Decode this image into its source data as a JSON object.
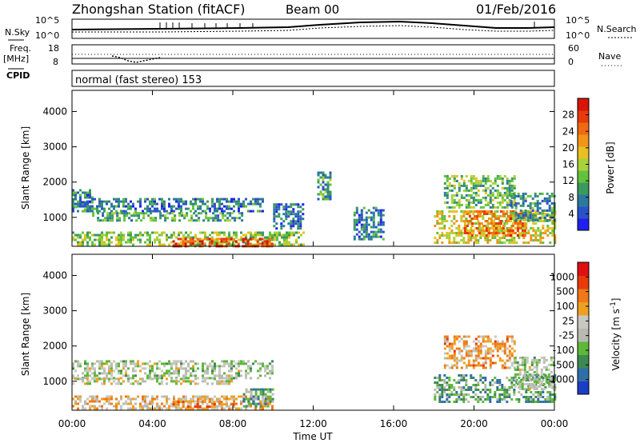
{
  "header": {
    "title": "Zhongshan Station (fitACF)",
    "beam": "Beam 00",
    "date": "01/Feb/2016"
  },
  "strips": {
    "nsky_label": "N.Sky",
    "nsearch_label": "N.Search",
    "nsky_top": "10^5",
    "nsky_bottom": "10^0",
    "nsearch_top": "10^5",
    "nsearch_bottom": "10^0",
    "freq_label": "Freq.",
    "freq_unit": "[MHz]",
    "freq_top": "18",
    "freq_bottom": "8",
    "nave_label": "Nave",
    "nave_top": "60",
    "nave_bottom": "0",
    "cpid_label": "CPID",
    "cpid_text": "normal (fast stereo) 153"
  },
  "chart_data": [
    {
      "type": "heatmap",
      "panel": "power",
      "ylabel": "Slant Range [km]",
      "xlabel": "",
      "ylim": [
        180,
        4600
      ],
      "xlim": [
        0,
        24
      ],
      "y_ticks": [
        "1000",
        "2000",
        "3000",
        "4000"
      ],
      "x_ticks": [
        "00:00",
        "04:00",
        "08:00",
        "12:00",
        "16:00",
        "20:00",
        "00:00"
      ],
      "colorbar": {
        "label": "Power [dB]",
        "ticks": [
          "4",
          "8",
          "12",
          "16",
          "20",
          "24",
          "28"
        ],
        "colors": [
          "#1f1ff2",
          "#2a52c8",
          "#2b7a9e",
          "#3a9a5e",
          "#62c23c",
          "#a8d23a",
          "#e8c020",
          "#f19418",
          "#f06a10",
          "#e83a0a",
          "#d8140a"
        ]
      },
      "regions": [
        {
          "t": [
            0.0,
            1.0
          ],
          "r": [
            1200,
            1800
          ],
          "level": 0.25
        },
        {
          "t": [
            0.0,
            9.5
          ],
          "r": [
            1150,
            1550
          ],
          "level": 0.22
        },
        {
          "t": [
            1.0,
            8.5
          ],
          "r": [
            900,
            1150
          ],
          "level": 0.35
        },
        {
          "t": [
            0.0,
            11.5
          ],
          "r": [
            200,
            600
          ],
          "level": 0.45
        },
        {
          "t": [
            5.0,
            10.0
          ],
          "r": [
            200,
            420
          ],
          "level": 0.85
        },
        {
          "t": [
            10.0,
            11.5
          ],
          "r": [
            700,
            1400
          ],
          "level": 0.2
        },
        {
          "t": [
            12.2,
            12.9
          ],
          "r": [
            1500,
            2300
          ],
          "level": 0.3
        },
        {
          "t": [
            14.0,
            15.5
          ],
          "r": [
            400,
            1300
          ],
          "level": 0.25
        },
        {
          "t": [
            18.0,
            24.0
          ],
          "r": [
            300,
            1200
          ],
          "level": 0.55
        },
        {
          "t": [
            19.5,
            22.5
          ],
          "r": [
            500,
            1200
          ],
          "level": 0.75
        },
        {
          "t": [
            18.5,
            22.0
          ],
          "r": [
            1300,
            2200
          ],
          "level": 0.4
        },
        {
          "t": [
            21.8,
            24.0
          ],
          "r": [
            900,
            1700
          ],
          "level": 0.3
        }
      ]
    },
    {
      "type": "heatmap",
      "panel": "velocity",
      "ylabel": "Slant Range [km]",
      "xlabel": "Time UT",
      "ylim": [
        180,
        4600
      ],
      "xlim": [
        0,
        24
      ],
      "y_ticks": [
        "1000",
        "2000",
        "3000",
        "4000"
      ],
      "x_ticks": [
        "00:00",
        "04:00",
        "08:00",
        "12:00",
        "16:00",
        "20:00",
        "00:00"
      ],
      "colorbar": {
        "label": "Velocity [m s^-1]",
        "ticks": [
          "1000",
          "500",
          "100",
          "25",
          "-25",
          "-100",
          "-500",
          "-1000"
        ],
        "colors": [
          "#1a3ec8",
          "#2f6fa8",
          "#3d8a50",
          "#5cb838",
          "#b8bab0",
          "#c8c8c0",
          "#f0a020",
          "#f07818",
          "#e83a0a",
          "#e01010"
        ]
      },
      "regions": [
        {
          "t": [
            0.0,
            10.0
          ],
          "r": [
            1100,
            1600
          ],
          "level": 0.45
        },
        {
          "t": [
            0.0,
            8.0
          ],
          "r": [
            900,
            1100
          ],
          "level": 0.5
        },
        {
          "t": [
            0.0,
            10.0
          ],
          "r": [
            200,
            600
          ],
          "level": 0.6
        },
        {
          "t": [
            5.0,
            8.0
          ],
          "r": [
            250,
            450
          ],
          "level": 0.72
        },
        {
          "t": [
            8.5,
            10.0
          ],
          "r": [
            300,
            800
          ],
          "level": 0.3
        },
        {
          "t": [
            18.0,
            24.0
          ],
          "r": [
            400,
            1200
          ],
          "level": 0.3
        },
        {
          "t": [
            18.5,
            22.0
          ],
          "r": [
            1400,
            2300
          ],
          "level": 0.65
        },
        {
          "t": [
            22.0,
            24.0
          ],
          "r": [
            800,
            1700
          ],
          "level": 0.45
        }
      ]
    }
  ]
}
